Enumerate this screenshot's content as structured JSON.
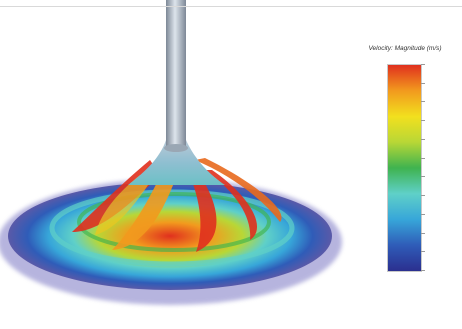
{
  "figure": {
    "subject": "impeller-flow-visualization",
    "colors": {
      "background": "#ffffff",
      "shaft": "#a9b4c0",
      "high_velocity": "#e0301e",
      "mid_velocity": "#3fb34f",
      "low_velocity": "#2b2f8f"
    }
  },
  "legend": {
    "title": "Velocity: Magnitude (m/s)",
    "colormap": [
      "#2b2f8f",
      "#2f5cb8",
      "#37a6d9",
      "#5fd0c8",
      "#3fb34f",
      "#b8d736",
      "#f2e01e",
      "#f29a1e",
      "#e0301e"
    ]
  }
}
